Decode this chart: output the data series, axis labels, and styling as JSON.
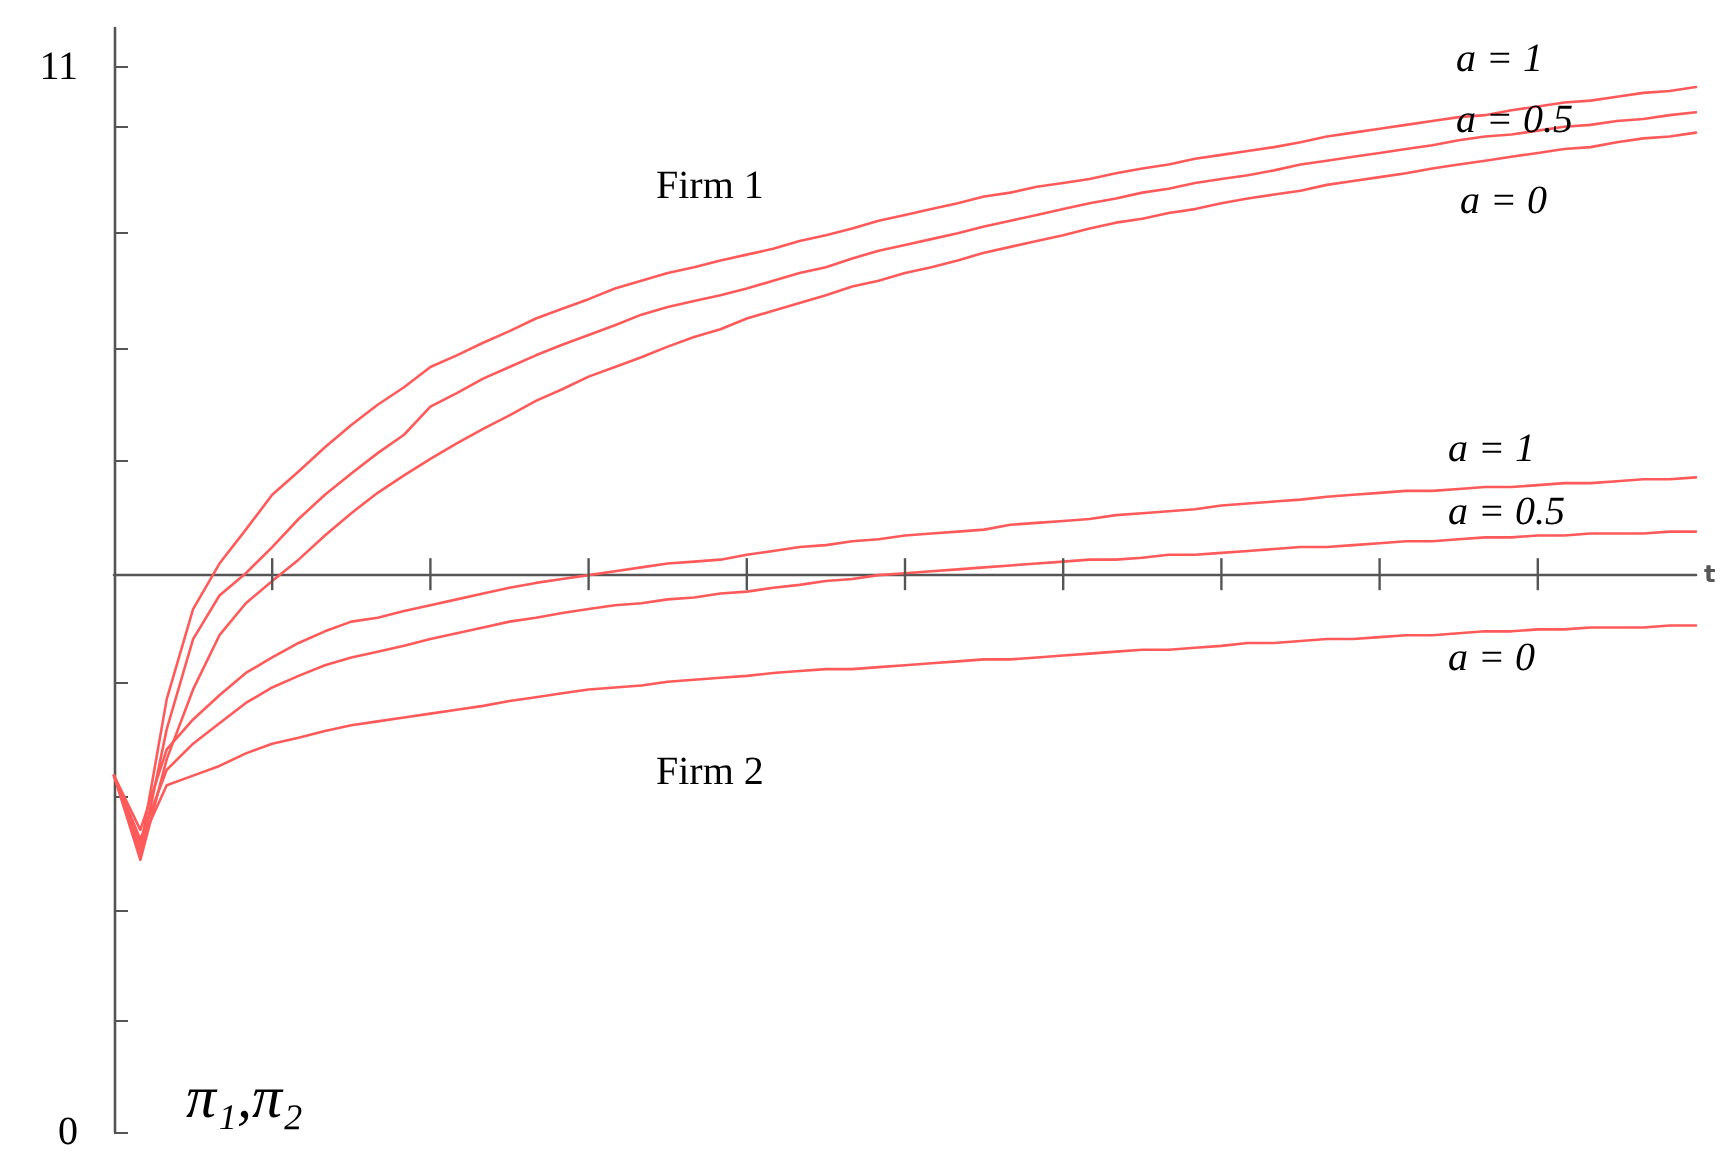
{
  "chart_data": {
    "type": "line",
    "xlabel": "t",
    "ylabel": "π₁,π₂",
    "categories": [
      null,
      null,
      null,
      null,
      null,
      null,
      null,
      null,
      null,
      null,
      null,
      null,
      null,
      null,
      null,
      null,
      null,
      null,
      null,
      null,
      null,
      null,
      null,
      null,
      null,
      null,
      null,
      null,
      null,
      null,
      null,
      null,
      null,
      null,
      null,
      null,
      null,
      null,
      null,
      null,
      null,
      null,
      null,
      null,
      null,
      null,
      null,
      null,
      null,
      null,
      null,
      null,
      null,
      null,
      null,
      null,
      null,
      null,
      null,
      null,
      null
    ],
    "ylim": [
      0,
      11.4
    ],
    "yticks": [
      0,
      {
        "value": 1.16,
        "label": null
      },
      {
        "value": 2.29,
        "label": null
      },
      {
        "value": 3.47,
        "label": null
      },
      {
        "value": 4.65,
        "label": null
      },
      {
        "value": 6.94,
        "label": null
      },
      {
        "value": 8.1,
        "label": null
      },
      {
        "value": 9.28,
        "label": null
      },
      {
        "value": 10.39,
        "label": null
      },
      11
    ],
    "ref_lines": [
      {
        "axis": "y",
        "value": 5.76,
        "color": "#555555"
      }
    ],
    "marker": "none",
    "line_style": "solid",
    "grid": false,
    "legend": false,
    "annotations": [
      "Firm 1",
      "Firm 2"
    ],
    "series": [
      {
        "name": "a = 1",
        "color": "#ff5a5a",
        "values": [
          3.68,
          2.92,
          4.47,
          5.4,
          5.87,
          6.22,
          6.58,
          6.82,
          7.07,
          7.3,
          7.51,
          7.69,
          7.9,
          8.02,
          8.15,
          8.27,
          8.4,
          8.5,
          8.6,
          8.71,
          8.79,
          8.87,
          8.93,
          9.0,
          9.06,
          9.12,
          9.2,
          9.26,
          9.33,
          9.41,
          9.47,
          9.53,
          9.59,
          9.66,
          9.7,
          9.76,
          9.8,
          9.84,
          9.9,
          9.95,
          9.99,
          10.05,
          10.09,
          10.13,
          10.17,
          10.22,
          10.28,
          10.32,
          10.36,
          10.4,
          10.44,
          10.48,
          10.5,
          10.55,
          10.59,
          10.63,
          10.65,
          10.69,
          10.73,
          10.75,
          10.79
        ]
      },
      {
        "name": "a = 0.5",
        "color": "#ff5a5a",
        "values": [
          3.68,
          2.85,
          4.16,
          5.09,
          5.54,
          5.77,
          6.04,
          6.33,
          6.58,
          6.8,
          7.01,
          7.2,
          7.49,
          7.63,
          7.78,
          7.9,
          8.02,
          8.13,
          8.23,
          8.33,
          8.44,
          8.52,
          8.58,
          8.64,
          8.71,
          8.79,
          8.87,
          8.93,
          9.02,
          9.1,
          9.16,
          9.22,
          9.28,
          9.35,
          9.41,
          9.47,
          9.53,
          9.59,
          9.64,
          9.7,
          9.74,
          9.8,
          9.84,
          9.88,
          9.93,
          9.99,
          10.03,
          10.07,
          10.11,
          10.15,
          10.19,
          10.24,
          10.28,
          10.3,
          10.34,
          10.38,
          10.4,
          10.44,
          10.46,
          10.5,
          10.53
        ]
      },
      {
        "name": "a = 0",
        "color": "#ff5a5a",
        "values": [
          3.68,
          2.81,
          3.85,
          4.57,
          5.13,
          5.46,
          5.69,
          5.91,
          6.16,
          6.39,
          6.6,
          6.78,
          6.95,
          7.11,
          7.26,
          7.4,
          7.55,
          7.67,
          7.8,
          7.9,
          8.0,
          8.11,
          8.21,
          8.29,
          8.4,
          8.48,
          8.56,
          8.64,
          8.73,
          8.79,
          8.87,
          8.93,
          9.0,
          9.08,
          9.14,
          9.2,
          9.26,
          9.33,
          9.39,
          9.43,
          9.49,
          9.53,
          9.59,
          9.64,
          9.68,
          9.72,
          9.78,
          9.82,
          9.86,
          9.9,
          9.95,
          9.99,
          10.03,
          10.07,
          10.11,
          10.15,
          10.17,
          10.22,
          10.26,
          10.28,
          10.32
        ]
      },
      {
        "name": "a = 1",
        "color": "#ff5a5a",
        "values": [
          3.68,
          3.12,
          3.95,
          4.26,
          4.51,
          4.74,
          4.9,
          5.05,
          5.17,
          5.27,
          5.31,
          5.38,
          5.44,
          5.5,
          5.56,
          5.62,
          5.67,
          5.71,
          5.75,
          5.79,
          5.83,
          5.87,
          5.89,
          5.91,
          5.96,
          6.0,
          6.04,
          6.06,
          6.1,
          6.12,
          6.16,
          6.18,
          6.2,
          6.22,
          6.27,
          6.29,
          6.31,
          6.33,
          6.37,
          6.39,
          6.41,
          6.43,
          6.47,
          6.49,
          6.51,
          6.53,
          6.56,
          6.58,
          6.6,
          6.62,
          6.62,
          6.64,
          6.66,
          6.66,
          6.68,
          6.7,
          6.7,
          6.72,
          6.74,
          6.74,
          6.76
        ]
      },
      {
        "name": "a = 0.5",
        "color": "#ff5a5a",
        "values": [
          3.68,
          3.02,
          3.74,
          4.01,
          4.22,
          4.43,
          4.59,
          4.71,
          4.82,
          4.9,
          4.96,
          5.02,
          5.09,
          5.15,
          5.21,
          5.27,
          5.31,
          5.36,
          5.4,
          5.44,
          5.46,
          5.5,
          5.52,
          5.56,
          5.58,
          5.62,
          5.65,
          5.69,
          5.71,
          5.75,
          5.77,
          5.79,
          5.81,
          5.83,
          5.85,
          5.87,
          5.89,
          5.91,
          5.91,
          5.93,
          5.96,
          5.96,
          5.98,
          6.0,
          6.02,
          6.04,
          6.04,
          6.06,
          6.08,
          6.1,
          6.1,
          6.12,
          6.14,
          6.14,
          6.16,
          6.16,
          6.18,
          6.18,
          6.18,
          6.2,
          6.2
        ]
      },
      {
        "name": "a = 0",
        "color": "#ff5a5a",
        "values": [
          3.68,
          2.98,
          3.58,
          3.68,
          3.78,
          3.91,
          4.01,
          4.07,
          4.14,
          4.2,
          4.24,
          4.28,
          4.32,
          4.36,
          4.4,
          4.45,
          4.49,
          4.53,
          4.57,
          4.59,
          4.61,
          4.65,
          4.67,
          4.69,
          4.71,
          4.74,
          4.76,
          4.78,
          4.78,
          4.8,
          4.82,
          4.84,
          4.86,
          4.88,
          4.88,
          4.9,
          4.92,
          4.94,
          4.96,
          4.98,
          4.98,
          5.0,
          5.02,
          5.05,
          5.05,
          5.07,
          5.09,
          5.09,
          5.11,
          5.13,
          5.13,
          5.15,
          5.17,
          5.17,
          5.19,
          5.19,
          5.21,
          5.21,
          5.21,
          5.23,
          5.23
        ]
      }
    ]
  }
}
